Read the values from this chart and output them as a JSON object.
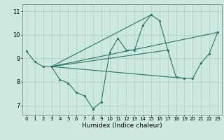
{
  "xlabel": "Humidex (Indice chaleur)",
  "xlim": [
    -0.5,
    23.5
  ],
  "ylim": [
    6.6,
    11.3
  ],
  "yticks": [
    7,
    8,
    9,
    10,
    11
  ],
  "xticks": [
    0,
    1,
    2,
    3,
    4,
    5,
    6,
    7,
    8,
    9,
    10,
    11,
    12,
    13,
    14,
    15,
    16,
    17,
    18,
    19,
    20,
    21,
    22,
    23
  ],
  "bg_color": "#cce8df",
  "line_color": "#2a7568",
  "grid_color": "#aacfc5",
  "series": [
    {
      "x": [
        0,
        1,
        2,
        3,
        4,
        5,
        6,
        7,
        8,
        9,
        10,
        11,
        12,
        13,
        14,
        15,
        16,
        17,
        18,
        19,
        20,
        21,
        22,
        23
      ],
      "y": [
        9.3,
        8.85,
        8.65,
        8.65,
        8.1,
        7.95,
        7.55,
        7.4,
        6.85,
        7.15,
        9.25,
        9.85,
        9.35,
        9.35,
        10.4,
        10.85,
        10.6,
        9.35,
        8.2,
        8.15,
        8.15,
        8.8,
        9.2,
        10.1
      ]
    },
    {
      "x": [
        3,
        23
      ],
      "y": [
        8.65,
        10.1
      ]
    },
    {
      "x": [
        3,
        19
      ],
      "y": [
        8.65,
        8.15
      ]
    },
    {
      "x": [
        3,
        17
      ],
      "y": [
        8.65,
        9.35
      ]
    },
    {
      "x": [
        3,
        15
      ],
      "y": [
        8.65,
        10.85
      ]
    }
  ]
}
